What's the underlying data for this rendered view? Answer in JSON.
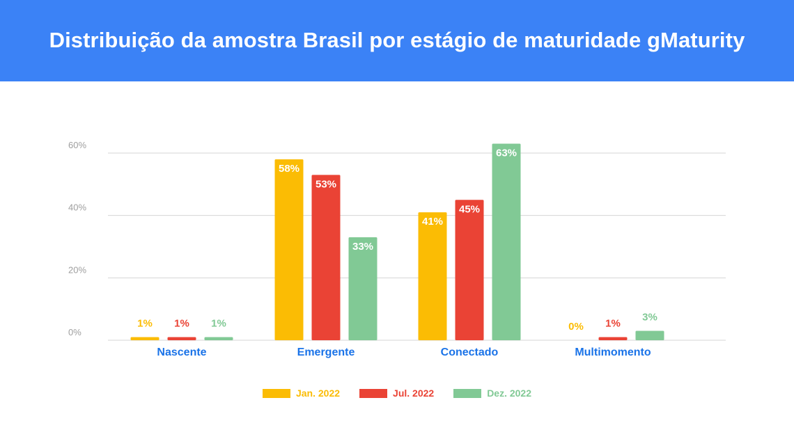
{
  "header": {
    "title": "Distribuição da amostra Brasil por estágio de maturidade gMaturity",
    "background": "#3b82f6"
  },
  "chart_data": {
    "type": "bar",
    "title": "Distribuição da amostra Brasil por estágio de maturidade gMaturity",
    "xlabel": "",
    "ylabel": "",
    "ylim": [
      0,
      60
    ],
    "yticks": [
      "0%",
      "20%",
      "40%",
      "60%"
    ],
    "grid": true,
    "legend_position": "bottom",
    "categories": [
      "Nascente",
      "Emergente",
      "Conectado",
      "Multimomento"
    ],
    "category_color": "#1a73e8",
    "series": [
      {
        "name": "Jan. 2022",
        "color": "#fbbc04",
        "values": [
          1,
          58,
          41,
          0
        ],
        "labels": [
          "1%",
          "58%",
          "41%",
          "0%"
        ]
      },
      {
        "name": "Jul. 2022",
        "color": "#ea4335",
        "values": [
          1,
          53,
          45,
          1
        ],
        "labels": [
          "1%",
          "53%",
          "45%",
          "1%"
        ]
      },
      {
        "name": "Dez. 2022",
        "color": "#81c995",
        "values": [
          1,
          33,
          63,
          3
        ],
        "labels": [
          "1%",
          "33%",
          "63%",
          "3%"
        ]
      }
    ]
  }
}
